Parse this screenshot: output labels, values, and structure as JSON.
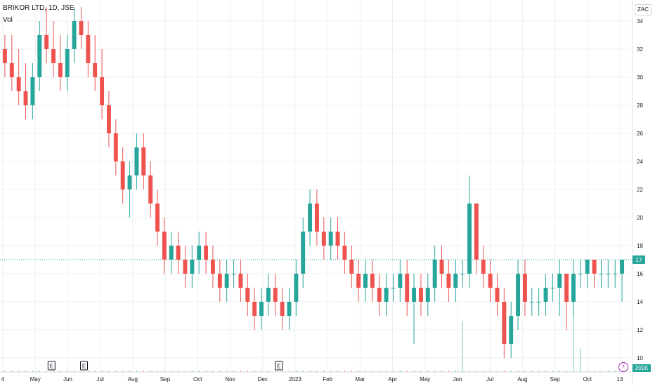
{
  "header": {
    "symbol_line": "BRIKOR LTD, 1D, JSE",
    "indicator": "Vol",
    "currency": "ZAC"
  },
  "last_price": {
    "label": "17",
    "color": "#26a69a"
  },
  "volume_label": "201K",
  "flash_icon": "lightning-icon",
  "colors": {
    "up": "#26a69a",
    "down": "#ef5350",
    "grid": "#eef0f3",
    "axis_text": "#131722"
  },
  "chart_data": {
    "type": "candlestick",
    "title": "BRIKOR LTD, 1D, JSE",
    "y_axis_ticks": [
      10,
      12,
      14,
      16,
      18,
      20,
      22,
      24,
      26,
      28,
      30,
      32,
      34
    ],
    "ylim": [
      9,
      35.5
    ],
    "x_axis_labels": [
      "4",
      "May",
      "Jun",
      "Jul",
      "Aug",
      "Sep",
      "Oct",
      "Nov",
      "Dec",
      "2023",
      "Feb",
      "Mar",
      "Apr",
      "May",
      "Jun",
      "Jul",
      "Aug",
      "Sep",
      "Oct",
      "13"
    ],
    "earnings_markers": [
      {
        "label": "E",
        "after_tick": "May"
      },
      {
        "label": "E",
        "after_tick": "Dec"
      },
      {
        "label": "E",
        "after_tick": "Jun"
      }
    ],
    "grid": true,
    "series": [
      {
        "values": [
          [
            32,
            33,
            30,
            31
          ],
          [
            31,
            33,
            29,
            30
          ],
          [
            30,
            32,
            28,
            29
          ],
          [
            29,
            31,
            27,
            28
          ],
          [
            28,
            31,
            27,
            30
          ],
          [
            30,
            34,
            29,
            33
          ],
          [
            33,
            35,
            31,
            32
          ],
          [
            32,
            34,
            30,
            31
          ],
          [
            31,
            33,
            29,
            30
          ],
          [
            30,
            33,
            29,
            32
          ],
          [
            32,
            35,
            31,
            34
          ],
          [
            34,
            35,
            32,
            33
          ],
          [
            33,
            34,
            30,
            31
          ],
          [
            31,
            33,
            29,
            30
          ],
          [
            30,
            32,
            27,
            28
          ],
          [
            28,
            29,
            25,
            26
          ],
          [
            26,
            27,
            23,
            24
          ],
          [
            24,
            25,
            21,
            22
          ],
          [
            22,
            24,
            20,
            23
          ],
          [
            23,
            26,
            22,
            25
          ],
          [
            25,
            26,
            22,
            23
          ],
          [
            23,
            24,
            20,
            21
          ],
          [
            21,
            22,
            18,
            19
          ],
          [
            19,
            20,
            16,
            17
          ],
          [
            17,
            19,
            16,
            18
          ],
          [
            18,
            19,
            16,
            17
          ],
          [
            17,
            18,
            15,
            16
          ],
          [
            16,
            18,
            15,
            17
          ],
          [
            17,
            19,
            16,
            18
          ],
          [
            18,
            19,
            16,
            17
          ],
          [
            17,
            18,
            15,
            16
          ],
          [
            16,
            17,
            14,
            15
          ],
          [
            15,
            17,
            14,
            16
          ],
          [
            16,
            17,
            15,
            16
          ],
          [
            16,
            17,
            14,
            15
          ],
          [
            15,
            16,
            13,
            14
          ],
          [
            14,
            15,
            12,
            13
          ],
          [
            13,
            15,
            12,
            14
          ],
          [
            14,
            16,
            13,
            15
          ],
          [
            15,
            16,
            13,
            14
          ],
          [
            14,
            15,
            12,
            13
          ],
          [
            13,
            15,
            12,
            14
          ],
          [
            14,
            17,
            13,
            16
          ],
          [
            16,
            20,
            15,
            19
          ],
          [
            19,
            22,
            18,
            21
          ],
          [
            21,
            22,
            18,
            19
          ],
          [
            19,
            20,
            17,
            18
          ],
          [
            18,
            20,
            17,
            19
          ],
          [
            19,
            20,
            17,
            18
          ],
          [
            18,
            19,
            16,
            17
          ],
          [
            17,
            18,
            15,
            16
          ],
          [
            16,
            17,
            14,
            15
          ],
          [
            15,
            17,
            14,
            16
          ],
          [
            16,
            17,
            14,
            15
          ],
          [
            15,
            16,
            13,
            14
          ],
          [
            14,
            16,
            13,
            15
          ],
          [
            15,
            16,
            14,
            15
          ],
          [
            15,
            17,
            14,
            16
          ],
          [
            16,
            17,
            13,
            14
          ],
          [
            14,
            16,
            11,
            15
          ],
          [
            15,
            16,
            13,
            14
          ],
          [
            14,
            16,
            13,
            15
          ],
          [
            15,
            18,
            14,
            17
          ],
          [
            17,
            18,
            15,
            16
          ],
          [
            16,
            17,
            14,
            15
          ],
          [
            15,
            17,
            14,
            16
          ],
          [
            16,
            17,
            15,
            16
          ],
          [
            16,
            23,
            15,
            21
          ],
          [
            21,
            21,
            16,
            17
          ],
          [
            17,
            18,
            15,
            16
          ],
          [
            16,
            17,
            14,
            15
          ],
          [
            15,
            16,
            13,
            14
          ],
          [
            14,
            15,
            10,
            11
          ],
          [
            11,
            14,
            10,
            13
          ],
          [
            13,
            17,
            12,
            16
          ],
          [
            16,
            17,
            13,
            14
          ],
          [
            14,
            15,
            13,
            14
          ],
          [
            14,
            15,
            13,
            14
          ],
          [
            14,
            16,
            13,
            15
          ],
          [
            15,
            16,
            14,
            15
          ],
          [
            15,
            17,
            13,
            16
          ],
          [
            16,
            16,
            12,
            14
          ],
          [
            14,
            17,
            13,
            16
          ],
          [
            16,
            17,
            15,
            16
          ],
          [
            16,
            17,
            15,
            17
          ],
          [
            17,
            17,
            15,
            16
          ],
          [
            16,
            17,
            15,
            16
          ],
          [
            16,
            17,
            15,
            16
          ],
          [
            16,
            17,
            15,
            16
          ],
          [
            16,
            17,
            14,
            17
          ]
        ],
        "volume": [
          1,
          1,
          1,
          1,
          1,
          1,
          1,
          1,
          1,
          1,
          1,
          1,
          1,
          1,
          1,
          1,
          1,
          1,
          1,
          1,
          1,
          1,
          1,
          1,
          1,
          1,
          1,
          1,
          1,
          1,
          1,
          1,
          1,
          1,
          1,
          1,
          1,
          1,
          1,
          1,
          1,
          1,
          1,
          1,
          1,
          1,
          1,
          1,
          1,
          1,
          1,
          1,
          1,
          1,
          1,
          1,
          1,
          1,
          1,
          1,
          1,
          1,
          1,
          1,
          1,
          1,
          30,
          1,
          1,
          1,
          1,
          1,
          1,
          1,
          1,
          1,
          1,
          1,
          1,
          1,
          1,
          1,
          50,
          14,
          1,
          1,
          1,
          1,
          1,
          1
        ]
      }
    ]
  }
}
